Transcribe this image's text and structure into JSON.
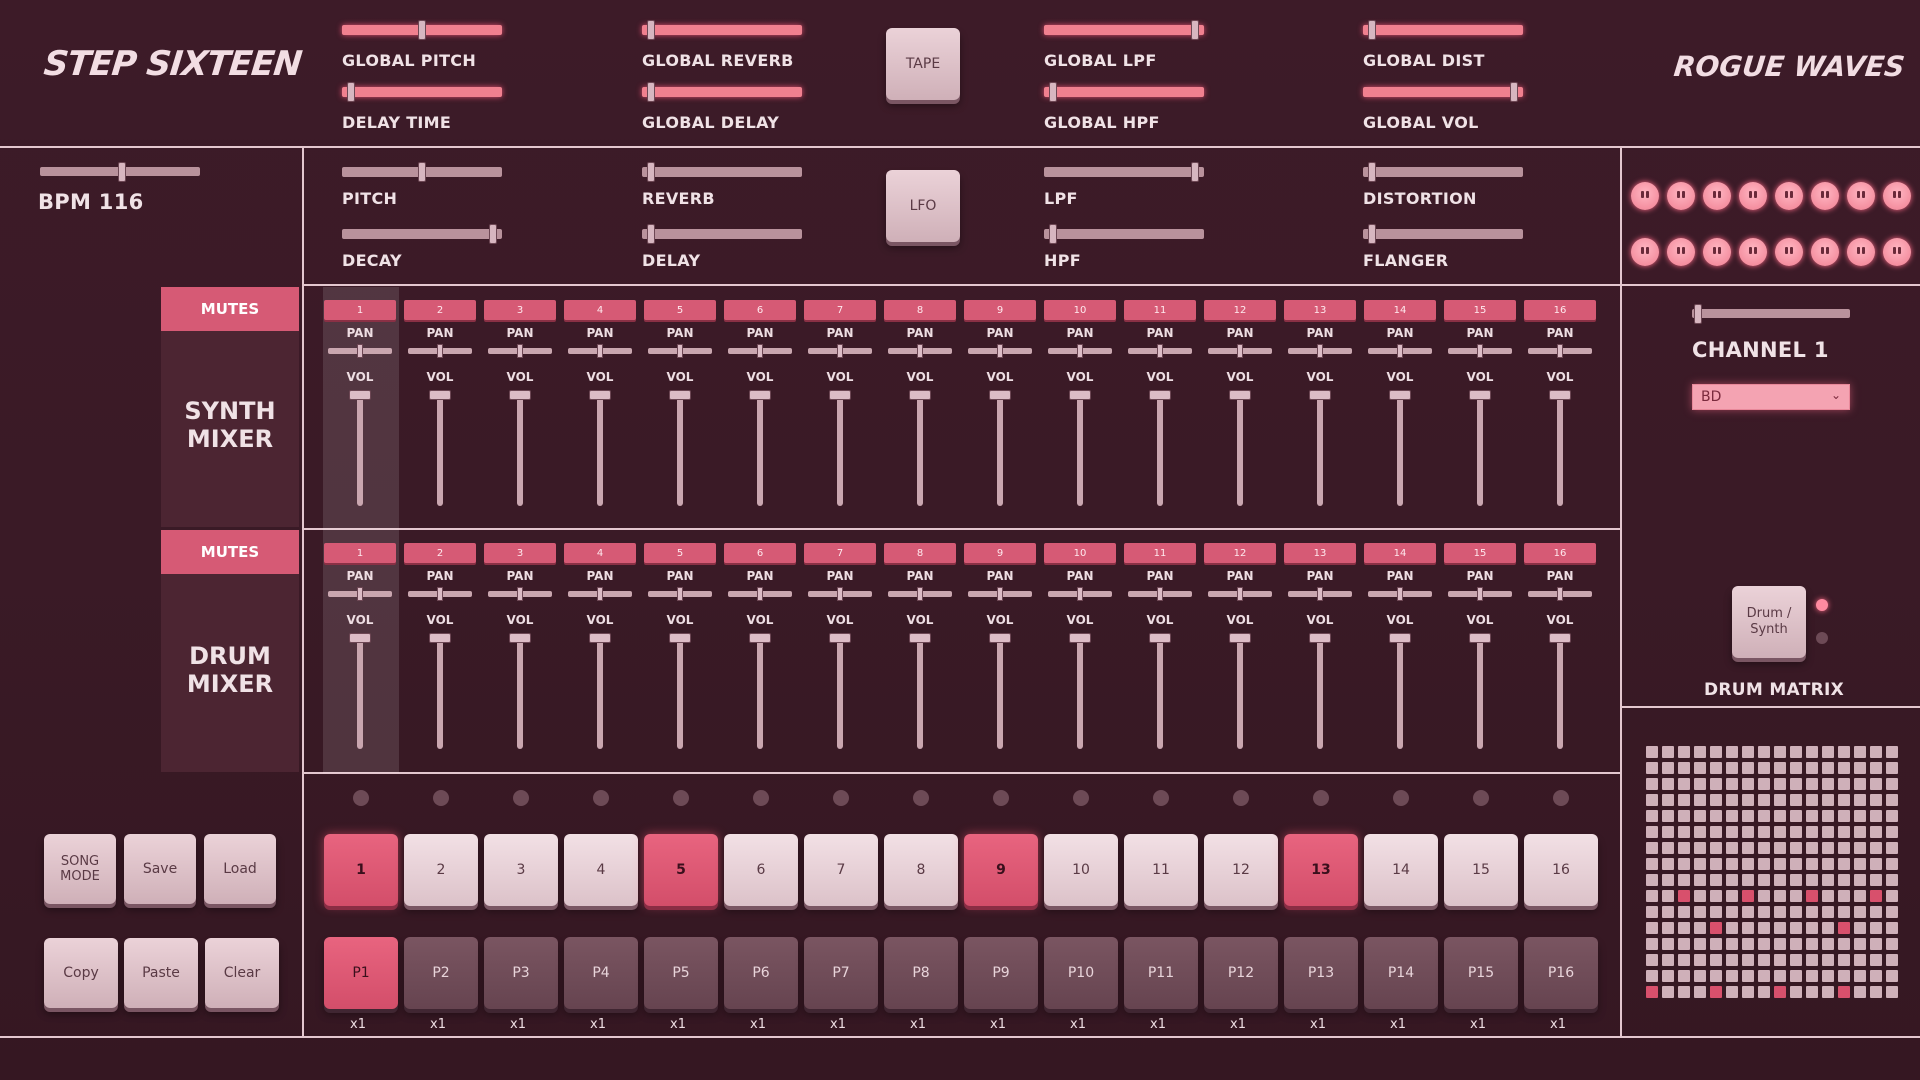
{
  "app": {
    "title": "STEP SIXTEEN",
    "artist": "ROGUE WAVES",
    "bpm_label": "BPM 116",
    "bpm": 116
  },
  "global_controls": [
    {
      "label": "GLOBAL PITCH",
      "value": 0.5
    },
    {
      "label": "DELAY TIME",
      "value": 0.03
    },
    {
      "label": "GLOBAL REVERB",
      "value": 0.03
    },
    {
      "label": "GLOBAL DELAY",
      "value": 0.03
    },
    {
      "label": "GLOBAL LPF",
      "value": 0.97
    },
    {
      "label": "GLOBAL HPF",
      "value": 0.03
    },
    {
      "label": "GLOBAL DIST",
      "value": 0.03
    },
    {
      "label": "GLOBAL VOL",
      "value": 0.97
    }
  ],
  "tape_button": "TAPE",
  "lfo_button": "LFO",
  "channel_controls": [
    {
      "label": "PITCH",
      "value": 0.5
    },
    {
      "label": "DECAY",
      "value": 0.97
    },
    {
      "label": "REVERB",
      "value": 0.03
    },
    {
      "label": "DELAY",
      "value": 0.03
    },
    {
      "label": "LPF",
      "value": 0.97
    },
    {
      "label": "HPF",
      "value": 0.03
    },
    {
      "label": "DISTORTION",
      "value": 0.03
    },
    {
      "label": "FLANGER",
      "value": 0.03
    }
  ],
  "synth_mixer": {
    "mutes_label": "MUTES",
    "title_line1": "SYNTH",
    "title_line2": "MIXER"
  },
  "drum_mixer": {
    "mutes_label": "MUTES",
    "title_line1": "DRUM",
    "title_line2": "MIXER"
  },
  "channel_numbers": [
    "1",
    "2",
    "3",
    "4",
    "5",
    "6",
    "7",
    "8",
    "9",
    "10",
    "11",
    "12",
    "13",
    "14",
    "15",
    "16"
  ],
  "pan_label": "PAN",
  "vol_label": "VOL",
  "right_panel": {
    "channel_label": "CHANNEL 1",
    "instrument_select": "BD",
    "toggle_button": "Drum / Synth",
    "matrix_label": "DRUM MATRIX"
  },
  "song_buttons": {
    "song_mode": "SONG MODE",
    "save": "Save",
    "load": "Load",
    "copy": "Copy",
    "paste": "Paste",
    "clear": "Clear"
  },
  "steps": [
    {
      "label": "1",
      "on": true
    },
    {
      "label": "2",
      "on": false
    },
    {
      "label": "3",
      "on": false
    },
    {
      "label": "4",
      "on": false
    },
    {
      "label": "5",
      "on": true
    },
    {
      "label": "6",
      "on": false
    },
    {
      "label": "7",
      "on": false
    },
    {
      "label": "8",
      "on": false
    },
    {
      "label": "9",
      "on": true
    },
    {
      "label": "10",
      "on": false
    },
    {
      "label": "11",
      "on": false
    },
    {
      "label": "12",
      "on": false
    },
    {
      "label": "13",
      "on": true
    },
    {
      "label": "14",
      "on": false
    },
    {
      "label": "15",
      "on": false
    },
    {
      "label": "16",
      "on": false
    }
  ],
  "patterns": [
    {
      "label": "P1",
      "mult": "x1",
      "on": true
    },
    {
      "label": "P2",
      "mult": "x1",
      "on": false
    },
    {
      "label": "P3",
      "mult": "x1",
      "on": false
    },
    {
      "label": "P4",
      "mult": "x1",
      "on": false
    },
    {
      "label": "P5",
      "mult": "x1",
      "on": false
    },
    {
      "label": "P6",
      "mult": "x1",
      "on": false
    },
    {
      "label": "P7",
      "mult": "x1",
      "on": false
    },
    {
      "label": "P8",
      "mult": "x1",
      "on": false
    },
    {
      "label": "P9",
      "mult": "x1",
      "on": false
    },
    {
      "label": "P10",
      "mult": "x1",
      "on": false
    },
    {
      "label": "P11",
      "mult": "x1",
      "on": false
    },
    {
      "label": "P12",
      "mult": "x1",
      "on": false
    },
    {
      "label": "P13",
      "mult": "x1",
      "on": false
    },
    {
      "label": "P14",
      "mult": "x1",
      "on": false
    },
    {
      "label": "P15",
      "mult": "x1",
      "on": false
    },
    {
      "label": "P16",
      "mult": "x1",
      "on": false
    }
  ],
  "drum_matrix_on": [
    [
      9,
      2
    ],
    [
      9,
      6
    ],
    [
      9,
      10
    ],
    [
      9,
      14
    ],
    [
      11,
      4
    ],
    [
      11,
      12
    ],
    [
      15,
      0
    ],
    [
      15,
      4
    ],
    [
      15,
      8
    ],
    [
      15,
      12
    ]
  ],
  "colors": {
    "background": "#3a1a26",
    "accent": "#d65a75",
    "glow": "#f0808f"
  }
}
